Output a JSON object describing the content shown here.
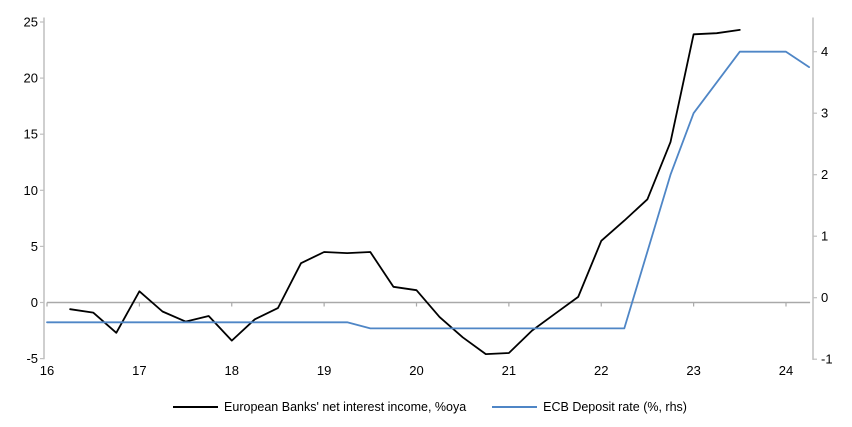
{
  "chart_data": {
    "type": "line",
    "title": "",
    "xlabel": "",
    "ylabel_left": "",
    "ylabel_right": "",
    "x_tick_labels": [
      "16",
      "17",
      "18",
      "19",
      "20",
      "21",
      "22",
      "23",
      "24"
    ],
    "x_tick_values": [
      16,
      17,
      18,
      19,
      20,
      21,
      22,
      23,
      24
    ],
    "left_axis": {
      "ticks": [
        25,
        20,
        15,
        10,
        5,
        0,
        -5
      ],
      "range": [
        -5,
        25
      ]
    },
    "right_axis": {
      "ticks": [
        4,
        3,
        2,
        1,
        0,
        -1
      ],
      "range": [
        -1,
        4.6
      ]
    },
    "grid": "zero-line-only",
    "legend_position": "bottom-center",
    "series": [
      {
        "name": "European Banks' net interest income, %oya",
        "axis": "left",
        "color": "#000000",
        "points": [
          [
            16.25,
            -0.6
          ],
          [
            16.5,
            -0.9
          ],
          [
            16.75,
            -2.7
          ],
          [
            17.0,
            1.0
          ],
          [
            17.25,
            -0.8
          ],
          [
            17.5,
            -1.7
          ],
          [
            17.75,
            -1.2
          ],
          [
            18.0,
            -3.4
          ],
          [
            18.25,
            -1.5
          ],
          [
            18.5,
            -0.5
          ],
          [
            18.75,
            3.5
          ],
          [
            19.0,
            4.5
          ],
          [
            19.25,
            4.4
          ],
          [
            19.5,
            4.5
          ],
          [
            19.75,
            1.4
          ],
          [
            20.0,
            1.1
          ],
          [
            20.25,
            -1.3
          ],
          [
            20.5,
            -3.1
          ],
          [
            20.75,
            -4.6
          ],
          [
            21.0,
            -4.5
          ],
          [
            21.25,
            -2.5
          ],
          [
            21.5,
            -1.0
          ],
          [
            21.75,
            0.5
          ],
          [
            22.0,
            5.5
          ],
          [
            22.25,
            7.3
          ],
          [
            22.5,
            9.2
          ],
          [
            22.75,
            14.3
          ],
          [
            23.0,
            23.9
          ],
          [
            23.25,
            24.0
          ],
          [
            23.5,
            24.3
          ]
        ]
      },
      {
        "name": "ECB Deposit rate (%, rhs)",
        "axis": "right",
        "color": "#4f86c6",
        "points": [
          [
            16.0,
            -0.4
          ],
          [
            16.25,
            -0.4
          ],
          [
            16.5,
            -0.4
          ],
          [
            16.75,
            -0.4
          ],
          [
            17.0,
            -0.4
          ],
          [
            17.25,
            -0.4
          ],
          [
            17.5,
            -0.4
          ],
          [
            17.75,
            -0.4
          ],
          [
            18.0,
            -0.4
          ],
          [
            18.25,
            -0.4
          ],
          [
            18.5,
            -0.4
          ],
          [
            18.75,
            -0.4
          ],
          [
            19.0,
            -0.4
          ],
          [
            19.25,
            -0.4
          ],
          [
            19.5,
            -0.5
          ],
          [
            19.75,
            -0.5
          ],
          [
            20.0,
            -0.5
          ],
          [
            20.25,
            -0.5
          ],
          [
            20.5,
            -0.5
          ],
          [
            20.75,
            -0.5
          ],
          [
            21.0,
            -0.5
          ],
          [
            21.25,
            -0.5
          ],
          [
            21.5,
            -0.5
          ],
          [
            21.75,
            -0.5
          ],
          [
            22.0,
            -0.5
          ],
          [
            22.25,
            -0.5
          ],
          [
            22.5,
            0.75
          ],
          [
            22.75,
            2.0
          ],
          [
            23.0,
            3.0
          ],
          [
            23.25,
            3.5
          ],
          [
            23.5,
            4.0
          ],
          [
            23.75,
            4.0
          ],
          [
            24.0,
            4.0
          ],
          [
            24.25,
            3.75
          ]
        ]
      }
    ]
  },
  "colors": {
    "series_nii": "#000000",
    "series_ecb": "#4f86c6",
    "zero_line": "#a9a9a9",
    "axis_line": "#bfbfbf",
    "text": "#000000"
  }
}
